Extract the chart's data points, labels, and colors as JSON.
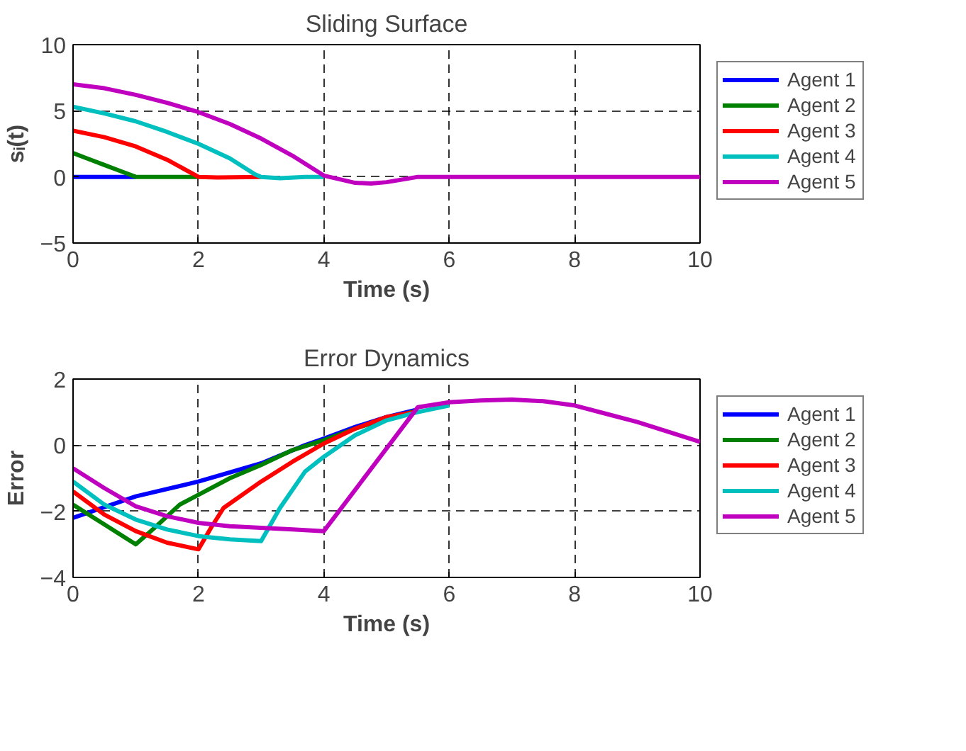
{
  "chart_data": [
    {
      "type": "line",
      "title": "Sliding Surface",
      "xlabel": "Time (s)",
      "ylabel": "sᵢ(t)",
      "xlim": [
        0,
        10
      ],
      "ylim": [
        -5,
        10
      ],
      "xticks": [
        0,
        2,
        4,
        6,
        8,
        10
      ],
      "yticks": [
        -5,
        0,
        5,
        10
      ],
      "grid": true,
      "legend": "right",
      "series": [
        {
          "name": "Agent 1",
          "color": "#0000ff",
          "x": [
            0,
            1
          ],
          "values": [
            0,
            0
          ]
        },
        {
          "name": "Agent 2",
          "color": "#008000",
          "x": [
            0,
            0.25,
            0.5,
            0.75,
            1,
            2
          ],
          "values": [
            1.8,
            1.35,
            0.9,
            0.45,
            0,
            0
          ]
        },
        {
          "name": "Agent 3",
          "color": "#ff0000",
          "x": [
            0,
            0.5,
            1,
            1.5,
            2,
            2.3,
            3
          ],
          "values": [
            3.5,
            3.0,
            2.3,
            1.3,
            0,
            -0.05,
            0
          ]
        },
        {
          "name": "Agent 4",
          "color": "#00bfbf",
          "x": [
            0,
            0.5,
            1,
            1.5,
            2,
            2.5,
            2.9,
            3,
            3.3,
            3.7,
            4
          ],
          "values": [
            5.3,
            4.8,
            4.2,
            3.4,
            2.5,
            1.4,
            0.2,
            0,
            -0.1,
            0,
            0
          ]
        },
        {
          "name": "Agent 5",
          "color": "#bf00bf",
          "x": [
            0,
            0.5,
            1,
            1.5,
            2,
            2.5,
            3,
            3.5,
            4,
            4.5,
            4.75,
            5,
            5.5,
            10
          ],
          "values": [
            7,
            6.7,
            6.2,
            5.6,
            4.9,
            4.0,
            2.9,
            1.6,
            0.1,
            -0.45,
            -0.5,
            -0.4,
            0,
            0
          ]
        }
      ]
    },
    {
      "type": "line",
      "title": "Error Dynamics",
      "xlabel": "Time (s)",
      "ylabel": "Error",
      "xlim": [
        0,
        10
      ],
      "ylim": [
        -4,
        2
      ],
      "xticks": [
        0,
        2,
        4,
        6,
        8,
        10
      ],
      "yticks": [
        -4,
        -2,
        0,
        2
      ],
      "grid": true,
      "legend": "right",
      "series": [
        {
          "name": "Agent 1",
          "color": "#0000ff",
          "x": [
            0,
            1,
            2,
            3,
            3.7,
            4,
            4.5,
            5,
            5.5
          ],
          "values": [
            -2.2,
            -1.55,
            -1.1,
            -0.55,
            0,
            0.2,
            0.55,
            0.85,
            1.08
          ]
        },
        {
          "name": "Agent 2",
          "color": "#008000",
          "x": [
            0,
            0.5,
            1,
            1.3,
            1.7,
            2,
            2.5,
            3,
            3.5,
            4,
            4.5,
            5,
            5.5
          ],
          "values": [
            -1.8,
            -2.4,
            -3.0,
            -2.5,
            -1.8,
            -1.5,
            -1.0,
            -0.6,
            -0.15,
            0.15,
            0.5,
            0.8,
            1.05
          ]
        },
        {
          "name": "Agent 3",
          "color": "#ff0000",
          "x": [
            0,
            0.5,
            1,
            1.5,
            2,
            2.2,
            2.4,
            3,
            3.5,
            4,
            4.5,
            5,
            5.5
          ],
          "values": [
            -1.4,
            -2.1,
            -2.6,
            -2.95,
            -3.15,
            -2.5,
            -1.9,
            -1.1,
            -0.5,
            0.05,
            0.5,
            0.85,
            1.02
          ]
        },
        {
          "name": "Agent 4",
          "color": "#00bfbf",
          "x": [
            0,
            0.5,
            1,
            1.5,
            2,
            2.5,
            3,
            3.3,
            3.7,
            4,
            4.5,
            5,
            5.5,
            6
          ],
          "values": [
            -1.1,
            -1.8,
            -2.25,
            -2.55,
            -2.75,
            -2.85,
            -2.9,
            -1.9,
            -0.8,
            -0.35,
            0.3,
            0.75,
            1.0,
            1.2
          ]
        },
        {
          "name": "Agent 5",
          "color": "#bf00bf",
          "x": [
            0,
            0.5,
            1,
            1.5,
            2,
            2.5,
            3,
            3.5,
            4,
            5.5,
            6,
            6.5,
            7,
            7.5,
            8,
            8.5,
            9,
            9.5,
            10
          ],
          "values": [
            -0.7,
            -1.3,
            -1.85,
            -2.15,
            -2.35,
            -2.45,
            -2.5,
            -2.55,
            -2.6,
            1.15,
            1.3,
            1.35,
            1.38,
            1.33,
            1.2,
            0.95,
            0.7,
            0.4,
            0.1
          ]
        }
      ]
    }
  ]
}
